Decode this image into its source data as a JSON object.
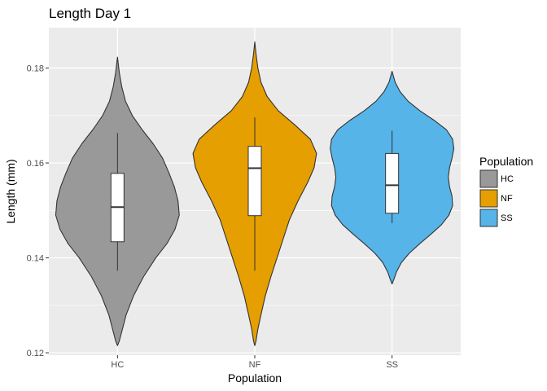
{
  "chart_data": {
    "type": "violin",
    "title": "Length Day 1",
    "xlabel": "Population",
    "ylabel": "Length (mm)",
    "ylim": [
      0.1195,
      0.1885
    ],
    "yticks": [
      0.12,
      0.14,
      0.16,
      0.18
    ],
    "ytick_labels": [
      "0.12",
      "0.14",
      "0.16",
      "0.18"
    ],
    "categories": [
      "HC",
      "NF",
      "SS"
    ],
    "grid": true,
    "legend": {
      "title": "Population",
      "position": "right",
      "entries": [
        "HC",
        "NF",
        "SS"
      ]
    },
    "colors": {
      "HC": "#999999",
      "NF": "#E69F00",
      "SS": "#56B4E9",
      "panel": "#EBEBEB",
      "grid": "#FFFFFF",
      "outline": "#333333"
    },
    "series": [
      {
        "category": "HC",
        "min": 0.1215,
        "max": 0.1823,
        "box": {
          "whisker_low": 0.1373,
          "q1": 0.1434,
          "median": 0.1507,
          "q3": 0.1578,
          "whisker_high": 0.1663
        },
        "density_profile": [
          [
            0.1215,
            0.0
          ],
          [
            0.1225,
            0.03
          ],
          [
            0.125,
            0.08
          ],
          [
            0.128,
            0.14
          ],
          [
            0.132,
            0.26
          ],
          [
            0.136,
            0.42
          ],
          [
            0.14,
            0.62
          ],
          [
            0.143,
            0.8
          ],
          [
            0.146,
            0.93
          ],
          [
            0.149,
            1.0
          ],
          [
            0.152,
            0.98
          ],
          [
            0.155,
            0.92
          ],
          [
            0.158,
            0.83
          ],
          [
            0.161,
            0.73
          ],
          [
            0.164,
            0.58
          ],
          [
            0.167,
            0.4
          ],
          [
            0.17,
            0.24
          ],
          [
            0.173,
            0.13
          ],
          [
            0.176,
            0.07
          ],
          [
            0.179,
            0.03
          ],
          [
            0.1823,
            0.0
          ]
        ]
      },
      {
        "category": "NF",
        "min": 0.1215,
        "max": 0.1855,
        "box": {
          "whisker_low": 0.1373,
          "q1": 0.1489,
          "median": 0.1589,
          "q3": 0.1635,
          "whisker_high": 0.1696
        },
        "density_profile": [
          [
            0.1215,
            0.0
          ],
          [
            0.1225,
            0.02
          ],
          [
            0.125,
            0.05
          ],
          [
            0.128,
            0.1
          ],
          [
            0.132,
            0.17
          ],
          [
            0.136,
            0.26
          ],
          [
            0.14,
            0.36
          ],
          [
            0.144,
            0.46
          ],
          [
            0.148,
            0.56
          ],
          [
            0.152,
            0.7
          ],
          [
            0.156,
            0.86
          ],
          [
            0.159,
            0.96
          ],
          [
            0.162,
            1.0
          ],
          [
            0.165,
            0.9
          ],
          [
            0.168,
            0.65
          ],
          [
            0.171,
            0.38
          ],
          [
            0.174,
            0.2
          ],
          [
            0.177,
            0.1
          ],
          [
            0.18,
            0.05
          ],
          [
            0.183,
            0.02
          ],
          [
            0.1855,
            0.0
          ]
        ]
      },
      {
        "category": "SS",
        "min": 0.1345,
        "max": 0.1793,
        "box": {
          "whisker_low": 0.1473,
          "q1": 0.1494,
          "median": 0.1553,
          "q3": 0.162,
          "whisker_high": 0.1668
        },
        "density_profile": [
          [
            0.1345,
            0.0
          ],
          [
            0.1355,
            0.03
          ],
          [
            0.137,
            0.07
          ],
          [
            0.139,
            0.15
          ],
          [
            0.141,
            0.28
          ],
          [
            0.143,
            0.45
          ],
          [
            0.145,
            0.63
          ],
          [
            0.147,
            0.8
          ],
          [
            0.149,
            0.92
          ],
          [
            0.151,
            0.98
          ],
          [
            0.153,
            0.97
          ],
          [
            0.155,
            0.93
          ],
          [
            0.157,
            0.91
          ],
          [
            0.159,
            0.93
          ],
          [
            0.161,
            0.97
          ],
          [
            0.163,
            1.0
          ],
          [
            0.165,
            0.98
          ],
          [
            0.167,
            0.88
          ],
          [
            0.169,
            0.68
          ],
          [
            0.171,
            0.45
          ],
          [
            0.173,
            0.26
          ],
          [
            0.175,
            0.13
          ],
          [
            0.177,
            0.05
          ],
          [
            0.1793,
            0.0
          ]
        ]
      }
    ]
  }
}
